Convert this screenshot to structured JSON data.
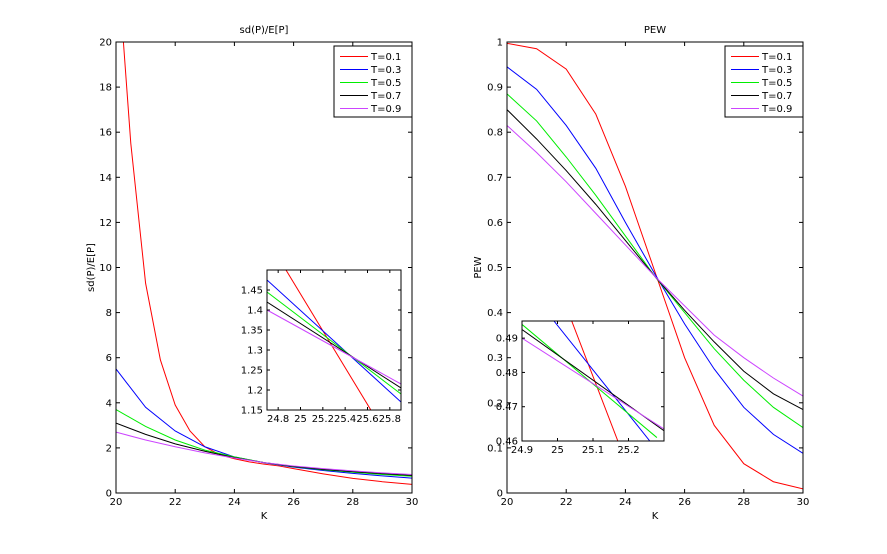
{
  "chart_data": [
    {
      "id": "left",
      "type": "line",
      "title": "sd(P)/E[P]",
      "xlabel": "K",
      "ylabel": "sd(P)/E[P]",
      "xlim": [
        20,
        30
      ],
      "ylim": [
        0,
        20
      ],
      "xticks": [
        20,
        22,
        24,
        26,
        28,
        30
      ],
      "yticks": [
        0,
        2,
        4,
        6,
        8,
        10,
        12,
        14,
        16,
        18,
        20
      ],
      "legend_position": "top-right",
      "series": [
        {
          "name": "T=0.1",
          "color": "#ff0000",
          "x": [
            20.25,
            20.5,
            21,
            21.5,
            22,
            22.5,
            23,
            23.5,
            24,
            24.5,
            25,
            25.5,
            26,
            27,
            28,
            29,
            30
          ],
          "y": [
            20,
            15.5,
            9.3,
            5.9,
            3.9,
            2.75,
            2.05,
            1.7,
            1.52,
            1.38,
            1.28,
            1.2,
            1.08,
            0.85,
            0.65,
            0.5,
            0.38
          ]
        },
        {
          "name": "T=0.3",
          "color": "#0000ff",
          "x": [
            20,
            21,
            22,
            23,
            24,
            25,
            26,
            27,
            28,
            29,
            30
          ],
          "y": [
            5.5,
            3.8,
            2.75,
            2.05,
            1.6,
            1.34,
            1.15,
            1.0,
            0.87,
            0.76,
            0.66
          ]
        },
        {
          "name": "T=0.5",
          "color": "#00ee00",
          "x": [
            20,
            21,
            22,
            23,
            24,
            25,
            26,
            27,
            28,
            29,
            30
          ],
          "y": [
            3.7,
            2.95,
            2.35,
            1.9,
            1.6,
            1.35,
            1.17,
            1.03,
            0.92,
            0.82,
            0.74
          ]
        },
        {
          "name": "T=0.7",
          "color": "#000000",
          "x": [
            20,
            21,
            22,
            23,
            24,
            25,
            26,
            27,
            28,
            29,
            30
          ],
          "y": [
            3.1,
            2.6,
            2.18,
            1.85,
            1.57,
            1.35,
            1.18,
            1.05,
            0.95,
            0.86,
            0.78
          ]
        },
        {
          "name": "T=0.9",
          "color": "#cc44ff",
          "x": [
            20,
            21,
            22,
            23,
            24,
            25,
            26,
            27,
            28,
            29,
            30
          ],
          "y": [
            2.7,
            2.35,
            2.05,
            1.78,
            1.55,
            1.35,
            1.2,
            1.08,
            0.98,
            0.89,
            0.82
          ]
        }
      ],
      "inset": {
        "xlim": [
          24.7,
          25.9
        ],
        "ylim": [
          1.15,
          1.5
        ],
        "xticks": [
          24.8,
          25,
          25.2,
          25.4,
          25.6,
          25.8
        ],
        "yticks": [
          1.15,
          1.2,
          1.25,
          1.3,
          1.35,
          1.4,
          1.45
        ],
        "series": [
          {
            "name": "T=0.1",
            "color": "#ff0000",
            "x": [
              24.87,
              25.63
            ],
            "y": [
              1.5,
              1.15
            ]
          },
          {
            "name": "T=0.3",
            "color": "#0000ff",
            "x": [
              24.7,
              25.9
            ],
            "y": [
              1.475,
              1.17
            ]
          },
          {
            "name": "T=0.5",
            "color": "#00ee00",
            "x": [
              24.7,
              25.9
            ],
            "y": [
              1.445,
              1.19
            ]
          },
          {
            "name": "T=0.7",
            "color": "#000000",
            "x": [
              24.7,
              25.9
            ],
            "y": [
              1.42,
              1.205
            ]
          },
          {
            "name": "T=0.9",
            "color": "#cc44ff",
            "x": [
              24.7,
              25.9
            ],
            "y": [
              1.4,
              1.215
            ]
          }
        ]
      }
    },
    {
      "id": "right",
      "type": "line",
      "title": "PEW",
      "xlabel": "K",
      "ylabel": "PEW",
      "xlim": [
        20,
        30
      ],
      "ylim": [
        0,
        1
      ],
      "xticks": [
        20,
        22,
        24,
        26,
        28,
        30
      ],
      "yticks": [
        0,
        0.1,
        0.2,
        0.3,
        0.4,
        0.5,
        0.6,
        0.7,
        0.8,
        0.9,
        1
      ],
      "legend_position": "top-right",
      "series": [
        {
          "name": "T=0.1",
          "color": "#ff0000",
          "x": [
            20,
            21,
            22,
            23,
            24,
            25,
            26,
            27,
            28,
            29,
            30
          ],
          "y": [
            0.997,
            0.985,
            0.94,
            0.84,
            0.68,
            0.49,
            0.3,
            0.15,
            0.065,
            0.025,
            0.009
          ]
        },
        {
          "name": "T=0.3",
          "color": "#0000ff",
          "x": [
            20,
            21,
            22,
            23,
            24,
            25,
            26,
            27,
            28,
            29,
            30
          ],
          "y": [
            0.945,
            0.895,
            0.815,
            0.72,
            0.6,
            0.485,
            0.375,
            0.275,
            0.19,
            0.13,
            0.088
          ]
        },
        {
          "name": "T=0.5",
          "color": "#00ee00",
          "x": [
            20,
            21,
            22,
            23,
            24,
            25,
            26,
            27,
            28,
            29,
            30
          ],
          "y": [
            0.885,
            0.825,
            0.745,
            0.66,
            0.57,
            0.48,
            0.4,
            0.32,
            0.25,
            0.19,
            0.145
          ]
        },
        {
          "name": "T=0.7",
          "color": "#000000",
          "x": [
            20,
            21,
            22,
            23,
            24,
            25,
            26,
            27,
            28,
            29,
            30
          ],
          "y": [
            0.85,
            0.785,
            0.715,
            0.64,
            0.56,
            0.48,
            0.405,
            0.335,
            0.27,
            0.22,
            0.185
          ]
        },
        {
          "name": "T=0.9",
          "color": "#cc44ff",
          "x": [
            20,
            21,
            22,
            23,
            24,
            25,
            26,
            27,
            28,
            29,
            30
          ],
          "y": [
            0.815,
            0.755,
            0.69,
            0.62,
            0.55,
            0.48,
            0.415,
            0.35,
            0.3,
            0.255,
            0.215
          ]
        }
      ],
      "inset": {
        "xlim": [
          24.9,
          25.3
        ],
        "ylim": [
          0.46,
          0.495
        ],
        "xticks": [
          24.9,
          25,
          25.1,
          25.2
        ],
        "yticks": [
          0.46,
          0.47,
          0.48,
          0.49
        ],
        "series": [
          {
            "name": "T=0.1",
            "color": "#ff0000",
            "x": [
              25.04,
              25.17
            ],
            "y": [
              0.495,
              0.46
            ]
          },
          {
            "name": "T=0.3",
            "color": "#0000ff",
            "x": [
              24.99,
              25.26
            ],
            "y": [
              0.495,
              0.46
            ]
          },
          {
            "name": "T=0.5",
            "color": "#00ee00",
            "x": [
              24.9,
              25.28
            ],
            "y": [
              0.494,
              0.461
            ]
          },
          {
            "name": "T=0.7",
            "color": "#000000",
            "x": [
              24.9,
              25.3
            ],
            "y": [
              0.4925,
              0.463
            ]
          },
          {
            "name": "T=0.9",
            "color": "#cc44ff",
            "x": [
              24.9,
              25.3
            ],
            "y": [
              0.49,
              0.4635
            ]
          }
        ]
      }
    }
  ]
}
